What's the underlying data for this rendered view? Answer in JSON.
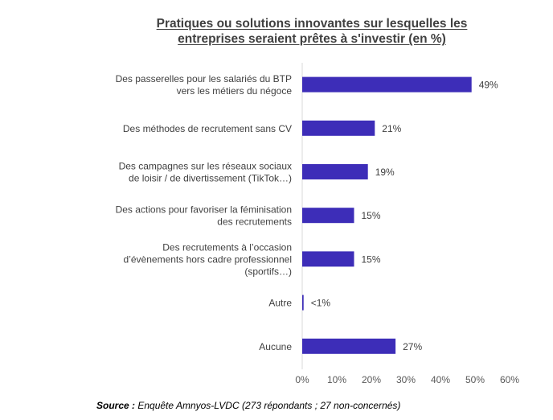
{
  "chart_data": {
    "type": "bar",
    "orientation": "horizontal",
    "title_lines": [
      "Pratiques ou solutions innovantes sur lesquelles les",
      "entreprises seraient prêtes à s'investir (en %)"
    ],
    "categories": [
      [
        "Des passerelles pour les salariés du BTP",
        "vers les métiers du négoce"
      ],
      [
        "Des méthodes de recrutement sans CV"
      ],
      [
        "Des campagnes sur les réseaux sociaux",
        "de loisir / de divertissement (TikTok…)"
      ],
      [
        "Des actions pour favoriser la féminisation",
        "des recrutements"
      ],
      [
        "Des recrutements à l’occasion",
        "d’évènements hors cadre professionnel",
        "(sportifs…)"
      ],
      [
        "Autre"
      ],
      [
        "Aucune"
      ]
    ],
    "values": [
      49,
      21,
      19,
      15,
      15,
      0.4,
      27
    ],
    "data_labels": [
      "49%",
      "21%",
      "19%",
      "15%",
      "15%",
      "<1%",
      "27%"
    ],
    "x_ticks": [
      "0%",
      "10%",
      "20%",
      "30%",
      "40%",
      "50%",
      "60%"
    ],
    "xlim": [
      0,
      60
    ],
    "xlabel": "",
    "ylabel": "",
    "grid": false,
    "bar_color": "#3d2db8"
  },
  "source": {
    "label": "Source :",
    "text": " Enquête Amnyos-LVDC (273 répondants ; 27 non-concernés)"
  }
}
